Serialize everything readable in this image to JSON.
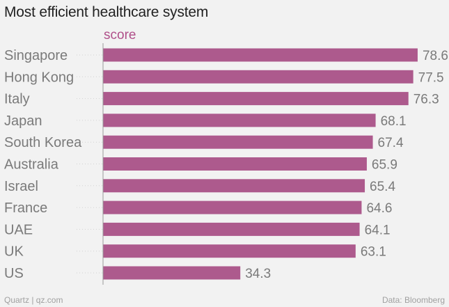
{
  "title": "Most efficient healthcare system",
  "footer": {
    "source_left": "Quartz | qz.com",
    "source_right": "Data: Bloomberg"
  },
  "colors": {
    "bar": "#ad5a8d",
    "series_label": "#b0508a"
  },
  "chart_data": {
    "type": "bar",
    "orientation": "horizontal",
    "title": "Most efficient healthcare system",
    "series": [
      {
        "name": "score",
        "values": [
          78.6,
          77.5,
          76.3,
          68.1,
          67.4,
          65.9,
          65.4,
          64.6,
          64.1,
          63.1,
          34.3
        ]
      }
    ],
    "categories": [
      "Singapore",
      "Hong Kong",
      "Italy",
      "Japan",
      "South Korea",
      "Australia",
      "Israel",
      "France",
      "UAE",
      "UK",
      "US"
    ],
    "xlim": [
      0,
      80
    ],
    "grid": false,
    "legend": "top-left"
  }
}
